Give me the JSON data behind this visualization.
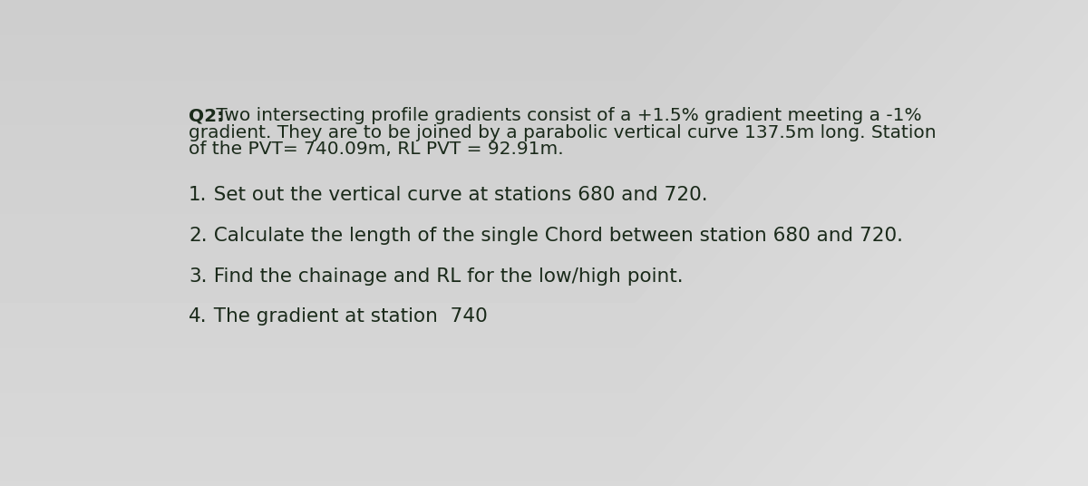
{
  "background_color": "#d8d8d8",
  "bg_top_color": "#c8c8cc",
  "bg_bottom_color": "#d0d0d0",
  "title_bold": "Q2:",
  "title_text": " Two intersecting profile gradients consist of a +1.5% gradient meeting a -1%",
  "line2": "gradient. They are to be joined by a parabolic vertical curve 137.5m long. Station",
  "line3": "of the PVT= 740.09m, RL PVT = 92.91m.",
  "items": [
    {
      "num": "1.",
      "text": "  Set out the vertical curve at stations 680 and 720."
    },
    {
      "num": "2.",
      "text": "  Calculate the length of the single Chord between station 680 and 720."
    },
    {
      "num": "3.",
      "text": "  Find the chainage and RL for the low/high point."
    },
    {
      "num": "4.",
      "text": "  The gradient at station  740"
    }
  ],
  "font_size_header": 14.5,
  "font_size_items": 15.5,
  "text_color": "#1a2a1a"
}
